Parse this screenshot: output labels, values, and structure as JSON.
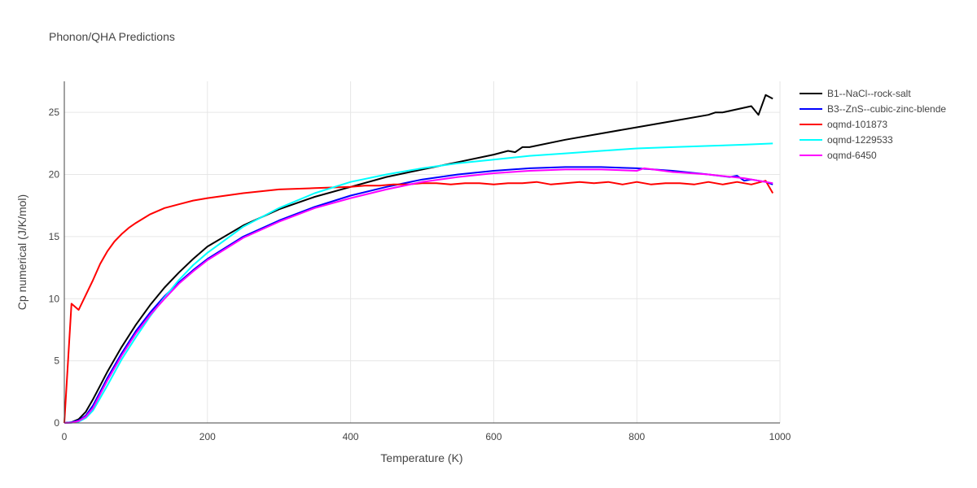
{
  "chart_data": {
    "type": "line",
    "title": "Phonon/QHA Predictions",
    "xlabel": "Temperature (K)",
    "ylabel": "Cp numerical (J/K/mol)",
    "xlim": [
      0,
      1000
    ],
    "ylim": [
      0,
      27.5
    ],
    "x_ticks": [
      0,
      200,
      400,
      600,
      800,
      1000
    ],
    "y_ticks": [
      0,
      5,
      10,
      15,
      20,
      25
    ],
    "grid": true,
    "legend_position": "top-right",
    "series": [
      {
        "name": "B1--NaCl--rock-salt",
        "color": "#000000",
        "x": [
          0,
          10,
          20,
          30,
          40,
          50,
          60,
          80,
          100,
          120,
          140,
          160,
          180,
          200,
          250,
          300,
          350,
          400,
          450,
          500,
          550,
          600,
          620,
          630,
          640,
          650,
          700,
          750,
          800,
          850,
          900,
          910,
          920,
          960,
          970,
          980,
          990
        ],
        "y": [
          0,
          0.05,
          0.3,
          0.9,
          1.9,
          3.0,
          4.1,
          6.1,
          7.9,
          9.5,
          10.9,
          12.1,
          13.2,
          14.2,
          15.9,
          17.2,
          18.2,
          19.0,
          19.8,
          20.4,
          21.0,
          21.6,
          21.9,
          21.8,
          22.2,
          22.2,
          22.8,
          23.3,
          23.8,
          24.3,
          24.8,
          25.0,
          25.0,
          25.5,
          24.8,
          26.4,
          26.1
        ]
      },
      {
        "name": "B3--ZnS--cubic-zinc-blende",
        "color": "#0000ff",
        "x": [
          0,
          10,
          20,
          30,
          40,
          50,
          60,
          80,
          100,
          120,
          140,
          160,
          180,
          200,
          250,
          300,
          350,
          400,
          450,
          500,
          550,
          600,
          650,
          700,
          750,
          800,
          850,
          900,
          930,
          940,
          950,
          960,
          980,
          990
        ],
        "y": [
          0,
          0.05,
          0.2,
          0.6,
          1.4,
          2.5,
          3.6,
          5.6,
          7.4,
          8.9,
          10.2,
          11.3,
          12.3,
          13.2,
          15.0,
          16.3,
          17.4,
          18.3,
          19.0,
          19.6,
          20.0,
          20.3,
          20.5,
          20.6,
          20.6,
          20.5,
          20.3,
          20.0,
          19.8,
          19.9,
          19.5,
          19.6,
          19.4,
          19.2
        ]
      },
      {
        "name": "oqmd-101873",
        "color": "#ff0000",
        "x": [
          0,
          10,
          20,
          30,
          40,
          50,
          60,
          70,
          80,
          90,
          100,
          120,
          140,
          160,
          180,
          200,
          250,
          300,
          350,
          400,
          420,
          440,
          460,
          480,
          500,
          520,
          540,
          560,
          580,
          600,
          620,
          640,
          660,
          680,
          700,
          720,
          740,
          760,
          780,
          800,
          820,
          840,
          860,
          880,
          900,
          920,
          940,
          960,
          980,
          990
        ],
        "y": [
          0,
          9.6,
          9.1,
          10.3,
          11.5,
          12.8,
          13.8,
          14.6,
          15.2,
          15.7,
          16.1,
          16.8,
          17.3,
          17.6,
          17.9,
          18.1,
          18.5,
          18.8,
          18.9,
          19.0,
          19.1,
          19.1,
          19.2,
          19.2,
          19.3,
          19.3,
          19.2,
          19.3,
          19.3,
          19.2,
          19.3,
          19.3,
          19.4,
          19.2,
          19.3,
          19.4,
          19.3,
          19.4,
          19.2,
          19.4,
          19.2,
          19.3,
          19.3,
          19.2,
          19.4,
          19.2,
          19.4,
          19.2,
          19.5,
          18.5
        ]
      },
      {
        "name": "oqmd-1229533",
        "color": "#00ffff",
        "x": [
          0,
          10,
          20,
          30,
          40,
          50,
          60,
          80,
          100,
          120,
          140,
          160,
          180,
          200,
          250,
          300,
          350,
          400,
          450,
          500,
          550,
          600,
          650,
          700,
          750,
          800,
          850,
          900,
          950,
          990
        ],
        "y": [
          0,
          0.02,
          0.1,
          0.4,
          1.0,
          2.0,
          3.0,
          5.1,
          6.9,
          8.6,
          10.1,
          11.5,
          12.7,
          13.7,
          15.8,
          17.3,
          18.5,
          19.4,
          20.0,
          20.5,
          20.9,
          21.2,
          21.5,
          21.7,
          21.9,
          22.1,
          22.2,
          22.3,
          22.4,
          22.5
        ]
      },
      {
        "name": "oqmd-6450",
        "color": "#ff00ff",
        "x": [
          0,
          10,
          20,
          30,
          40,
          50,
          60,
          80,
          100,
          120,
          140,
          160,
          180,
          200,
          250,
          300,
          350,
          400,
          450,
          500,
          550,
          600,
          650,
          700,
          750,
          800,
          810,
          850,
          900,
          950,
          990
        ],
        "y": [
          0,
          0.02,
          0.15,
          0.5,
          1.2,
          2.3,
          3.4,
          5.4,
          7.2,
          8.7,
          10.0,
          11.2,
          12.2,
          13.1,
          14.9,
          16.2,
          17.3,
          18.1,
          18.8,
          19.4,
          19.8,
          20.1,
          20.3,
          20.4,
          20.4,
          20.3,
          20.5,
          20.2,
          20.0,
          19.7,
          19.3
        ]
      }
    ]
  }
}
